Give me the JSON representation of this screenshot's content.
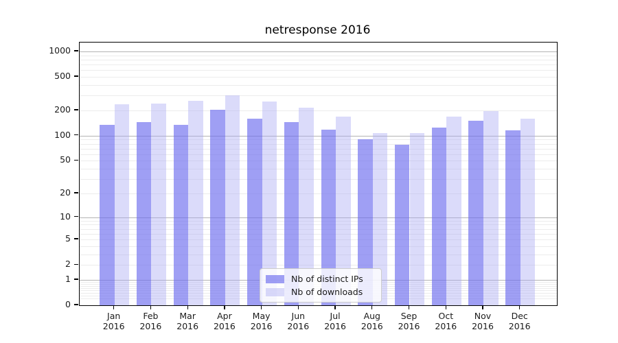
{
  "title": "netresponse 2016",
  "legend": {
    "items": [
      {
        "key": "ips",
        "label": "Nb of distinct IPs"
      },
      {
        "key": "downloads",
        "label": "Nb of downloads"
      }
    ]
  },
  "y_axis": {
    "tick_labels": [
      "0",
      "1",
      "2",
      "5",
      "10",
      "20",
      "50",
      "100",
      "200",
      "500",
      "1000"
    ],
    "tick_values": [
      0,
      1,
      2,
      5,
      10,
      20,
      50,
      100,
      200,
      500,
      1000
    ],
    "scale": "log10(1+y)",
    "max": 1275
  },
  "x_axis": {
    "months": [
      "Jan",
      "Feb",
      "Mar",
      "Apr",
      "May",
      "Jun",
      "Jul",
      "Aug",
      "Sep",
      "Oct",
      "Nov",
      "Dec"
    ],
    "year": "2016"
  },
  "colors": {
    "ips_bar": "#6e6eee",
    "ips_alpha": 0.66,
    "downloads_bar": "#aaaaf2",
    "downloads_alpha": 0.42,
    "major_grid": "#b3b3b3",
    "minor_grid": "#ececec",
    "axis": "#000000",
    "text": "#1a1a1a",
    "legend_bg": "rgba(255,255,255,0.8)",
    "legend_border": "#cccccc"
  },
  "chart_data": {
    "type": "bar",
    "title": "netresponse 2016",
    "categories": [
      "Jan 2016",
      "Feb 2016",
      "Mar 2016",
      "Apr 2016",
      "May 2016",
      "Jun 2016",
      "Jul 2016",
      "Aug 2016",
      "Sep 2016",
      "Oct 2016",
      "Nov 2016",
      "Dec 2016"
    ],
    "series": [
      {
        "name": "Nb of distinct IPs",
        "values": [
          136,
          145,
          134,
          205,
          160,
          145,
          118,
          90,
          78,
          124,
          150,
          115
        ]
      },
      {
        "name": "Nb of downloads",
        "values": [
          235,
          240,
          260,
          300,
          255,
          215,
          168,
          107,
          108,
          170,
          197,
          160
        ]
      }
    ],
    "yscale": "symlog-like: pixel position proportional to log10(1+y)",
    "yticks": [
      0,
      1,
      2,
      5,
      10,
      20,
      50,
      100,
      200,
      500,
      1000
    ],
    "ylim": [
      0,
      1275
    ],
    "grid": "horizontal; darker lines at 1,10,100,1000; faint minor lines at 2-9 of each decade",
    "legend_position": "inside, lower center"
  }
}
